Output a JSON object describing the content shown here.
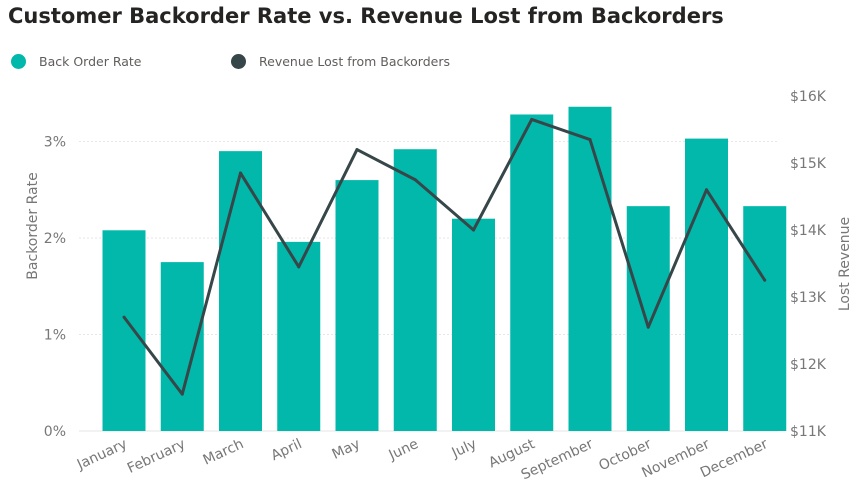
{
  "chart_data": {
    "type": "bar",
    "title": "Customer Backorder Rate vs. Revenue Lost from Backorders",
    "categories": [
      "January",
      "February",
      "March",
      "April",
      "May",
      "June",
      "July",
      "August",
      "September",
      "October",
      "November",
      "December"
    ],
    "series": [
      {
        "name": "Back Order Rate",
        "type": "bar",
        "axis": "left",
        "color": "#01B8AA",
        "values": [
          2.08,
          1.75,
          2.9,
          1.96,
          2.6,
          2.92,
          2.2,
          3.28,
          3.36,
          2.33,
          3.03,
          2.33
        ]
      },
      {
        "name": "Revenue Lost from Backorders",
        "type": "line",
        "axis": "right",
        "color": "#374649",
        "values": [
          12700,
          11550,
          14850,
          13450,
          15200,
          14750,
          14000,
          15650,
          15350,
          12550,
          14600,
          13250
        ]
      }
    ],
    "y_left": {
      "label": "Backorder Rate",
      "min": 0,
      "max": 3.5,
      "ticks": [
        {
          "value": 0,
          "label": "0%"
        },
        {
          "value": 1,
          "label": "1%"
        },
        {
          "value": 2,
          "label": "2%"
        },
        {
          "value": 3,
          "label": "3%"
        }
      ]
    },
    "y_right": {
      "label": "Lost Revenue",
      "min": 11000,
      "max": 16000,
      "ticks": [
        {
          "value": 11000,
          "label": "$11K"
        },
        {
          "value": 12000,
          "label": "$12K"
        },
        {
          "value": 13000,
          "label": "$13K"
        },
        {
          "value": 14000,
          "label": "$14K"
        },
        {
          "value": 15000,
          "label": "$15K"
        },
        {
          "value": 16000,
          "label": "$16K"
        }
      ]
    },
    "grid": true,
    "legend_position": "top-left"
  }
}
